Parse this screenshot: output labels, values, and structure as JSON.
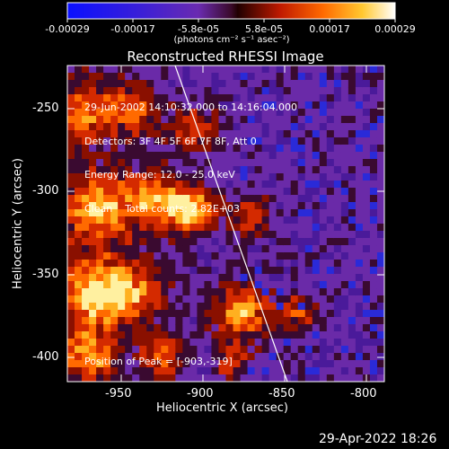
{
  "colorbar": {
    "tick_labels": [
      "-0.00029",
      "-0.00017",
      "-5.8e-05",
      "5.8e-05",
      "0.00017",
      "0.00029"
    ],
    "unit_label": "(photons cm⁻² s⁻¹ asec⁻²)"
  },
  "plot": {
    "title": "Reconstructed RHESSI Image",
    "xlabel": "Heliocentric X (arcsec)",
    "ylabel": "Heliocentric Y (arcsec)",
    "x_ticks": [
      "-950",
      "-900",
      "-850",
      "-800"
    ],
    "y_ticks": [
      "-250",
      "-300",
      "-350",
      "-400"
    ],
    "xlim": [
      -985,
      -790
    ],
    "ylim": [
      -420,
      -225
    ]
  },
  "info": {
    "line1": "29-Jun-2002 14:10:32.000 to 14:16:04.000",
    "line2": "Detectors: 3F 4F 5F 6F 7F 8F, Att 0",
    "line3": "Energy Range: 12.0 - 25.0 keV",
    "line4": "Clean    Total counts: 2.82E+03",
    "peak": "Position of Peak = [-903,-319]"
  },
  "footer": {
    "timestamp": "29-Apr-2022 18:26"
  }
}
